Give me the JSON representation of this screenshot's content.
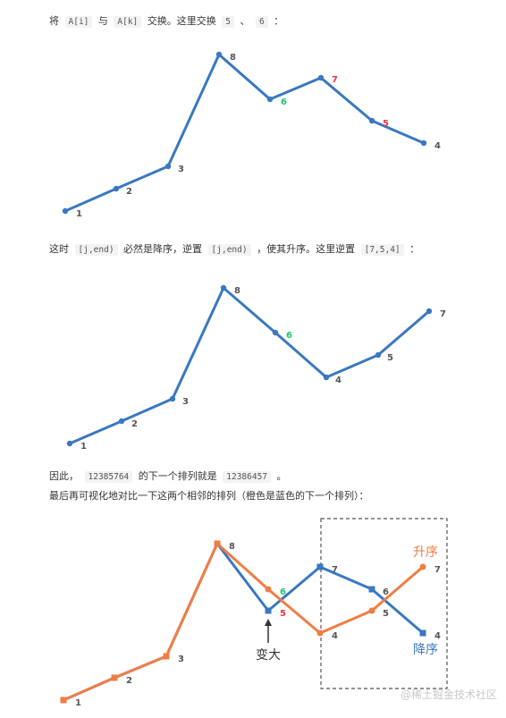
{
  "text1": {
    "a": "将",
    "code1": "A[i]",
    "b": "与",
    "code2": "A[k]",
    "c": "交换。这里交换",
    "code3": "5",
    "d": "、",
    "code4": "6",
    "e": "："
  },
  "text2": {
    "a": "这时",
    "code1": "[j,end)",
    "b": "必然是降序，逆置",
    "code2": "[j,end)",
    "c": "，使其升序。这里逆置",
    "code3": "[7,5,4]",
    "d": "："
  },
  "text3": {
    "a": "因此，",
    "code1": "12385764",
    "b": "的下一个排列就是",
    "code2": "12386457",
    "c": "。"
  },
  "text4": "最后再可视化地对比一下这两个相邻的排列（橙色是蓝色的下一个排列）：",
  "colors": {
    "blue": "#3a78c0",
    "orange": "#ef7d45",
    "green": "#1ec36b",
    "red": "#e8363d",
    "label": "#555555"
  },
  "chart_data": [
    {
      "type": "line",
      "series": [
        {
          "values": [
            1,
            2,
            3,
            8,
            6,
            7,
            5,
            4
          ]
        }
      ],
      "point_labels": [
        "1",
        "2",
        "3",
        "8",
        "6",
        "7",
        "5",
        "4"
      ],
      "highlight": {
        "green": [
          "6"
        ],
        "red": [
          "7",
          "5"
        ]
      }
    },
    {
      "type": "line",
      "series": [
        {
          "values": [
            1,
            2,
            3,
            8,
            6,
            4,
            5,
            7
          ]
        }
      ],
      "point_labels": [
        "1",
        "2",
        "3",
        "8",
        "6",
        "4",
        "5",
        "7"
      ],
      "highlight": {
        "green": [
          "6"
        ],
        "red": []
      }
    },
    {
      "type": "line",
      "series": [
        {
          "name": "降序",
          "values": [
            1,
            2,
            3,
            8,
            5,
            7,
            6,
            4
          ]
        },
        {
          "name": "升序",
          "values": [
            1,
            2,
            3,
            8,
            6,
            4,
            5,
            7
          ]
        }
      ],
      "annotations": {
        "arrow_label": "变大",
        "ascending_label": "升序",
        "descending_label": "降序"
      }
    }
  ],
  "watermark": "@稀土掘金技术社区"
}
